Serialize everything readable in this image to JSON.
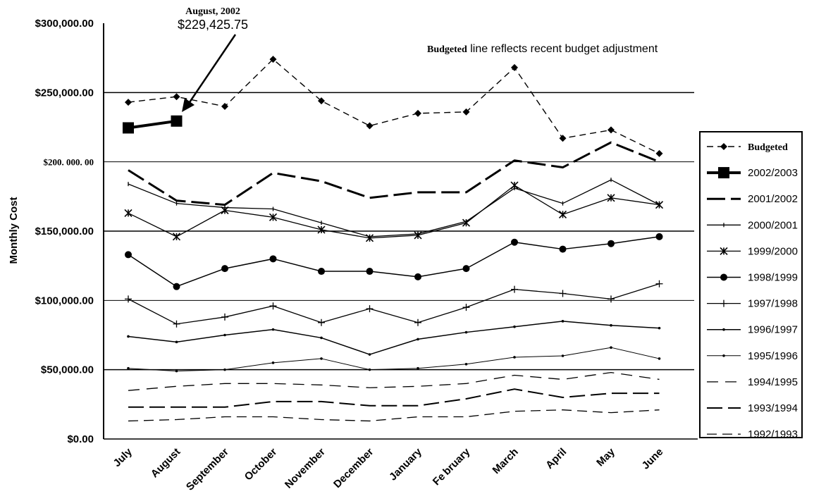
{
  "chart_data": {
    "type": "line",
    "ylabel": "Monthly Cost",
    "ylim": [
      0,
      300000
    ],
    "yticks": [
      {
        "value": 0,
        "label": "$0.00"
      },
      {
        "value": 50000,
        "label": "$50,000.00"
      },
      {
        "value": 100000,
        "label": "$100,000.00"
      },
      {
        "value": 150000,
        "label": "$150,000.00"
      },
      {
        "value": 200000,
        "label": "$200. 000. 00"
      },
      {
        "value": 250000,
        "label": "$250,000.00"
      },
      {
        "value": 300000,
        "label": "$300,000.00"
      }
    ],
    "categories": [
      "July",
      "August",
      "September",
      "October",
      "November",
      "December",
      "January",
      "Fe bruary",
      "March",
      "April",
      "May",
      "June"
    ],
    "series": [
      {
        "name": "Budgeted",
        "marker": "diamond",
        "dash": "9,6",
        "width": 1.4,
        "values": [
          243000,
          247000,
          240000,
          274000,
          244000,
          226000,
          235000,
          236000,
          268000,
          217000,
          223000,
          206000
        ]
      },
      {
        "name": "2002/2003",
        "marker": "square",
        "dash": "",
        "width": 4,
        "values": [
          224500,
          229425.75,
          null,
          null,
          null,
          null,
          null,
          null,
          null,
          null,
          null,
          null
        ]
      },
      {
        "name": "2001/2002",
        "marker": "none",
        "dash": "26,8",
        "width": 3,
        "values": [
          194000,
          172000,
          169000,
          192000,
          186000,
          174000,
          178000,
          178000,
          201000,
          196000,
          214000,
          200000
        ]
      },
      {
        "name": "2000/2001",
        "marker": "tick",
        "dash": "",
        "width": 1.3,
        "values": [
          184000,
          170000,
          167000,
          166000,
          156000,
          146000,
          148000,
          157000,
          181000,
          170000,
          187000,
          169000
        ]
      },
      {
        "name": "1999/2000",
        "marker": "star",
        "dash": "",
        "width": 1.3,
        "values": [
          163000,
          146000,
          165000,
          160000,
          151000,
          145000,
          147000,
          156000,
          183000,
          162000,
          174000,
          169000
        ]
      },
      {
        "name": "1998/1999",
        "marker": "circle",
        "dash": "",
        "width": 1.5,
        "values": [
          133000,
          110000,
          123000,
          130000,
          121000,
          121000,
          117000,
          123000,
          142000,
          137000,
          141000,
          146000
        ]
      },
      {
        "name": "1997/1998",
        "marker": "plus",
        "dash": "",
        "width": 1.3,
        "values": [
          101000,
          83000,
          88000,
          96000,
          84000,
          94000,
          84000,
          95000,
          108000,
          105000,
          101000,
          112000
        ]
      },
      {
        "name": "1996/1997",
        "marker": "dot",
        "dash": "",
        "width": 1.5,
        "values": [
          74000,
          70000,
          75000,
          79000,
          73000,
          61000,
          72000,
          77000,
          81000,
          85000,
          82000,
          80000
        ]
      },
      {
        "name": "1995/1996",
        "marker": "dot",
        "dash": "",
        "width": 1,
        "values": [
          51000,
          49000,
          50000,
          55000,
          58000,
          50000,
          51000,
          54000,
          59000,
          60000,
          66000,
          58000
        ]
      },
      {
        "name": "1994/1995",
        "marker": "none",
        "dash": "16,10",
        "width": 1.3,
        "values": [
          35000,
          38000,
          40000,
          40000,
          39000,
          37000,
          38000,
          40000,
          46000,
          43000,
          48000,
          43000
        ]
      },
      {
        "name": "1993/1994",
        "marker": "none",
        "dash": "22,8",
        "width": 2,
        "values": [
          23000,
          23000,
          23000,
          27000,
          27000,
          24000,
          24000,
          29000,
          36000,
          30000,
          33000,
          33000
        ]
      },
      {
        "name": "1992/1993",
        "marker": "none",
        "dash": "14,8",
        "width": 1.3,
        "values": [
          13000,
          14000,
          16000,
          16000,
          14000,
          13000,
          16000,
          16000,
          20000,
          21000,
          19000,
          21000
        ]
      }
    ],
    "annotations": [
      {
        "title": "August, 2002",
        "value_text": "$229,425.75",
        "series": "2002/2003",
        "category": "August"
      },
      {
        "strong": "Budgeted",
        "text": " line reflects recent budget adjustment"
      }
    ],
    "legend_position": "right",
    "grid": true
  }
}
